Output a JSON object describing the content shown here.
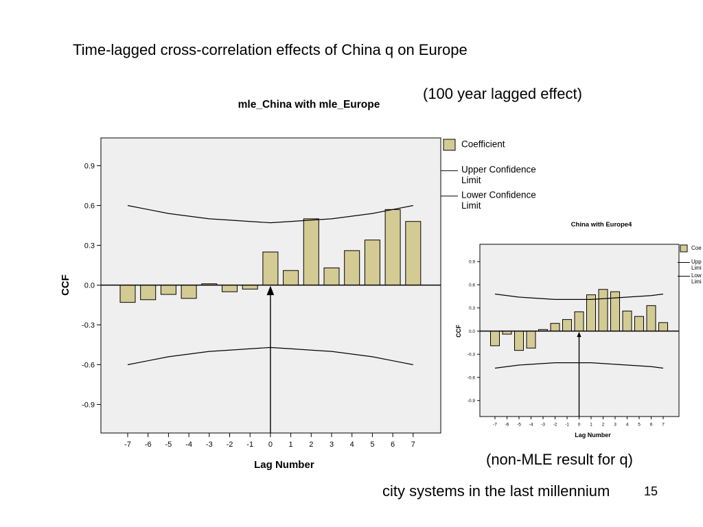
{
  "slide": {
    "title": "Time-lagged cross-correlation effects of China q on Europe",
    "lag_note": "(100 year lagged effect)",
    "nonmle_note": "(non-MLE result for q)",
    "footer": "city systems in the last millennium",
    "page_number": "15"
  },
  "colors": {
    "bar_fill": "#d4cb94",
    "plot_background": "#efefef",
    "line": "#000000"
  },
  "chart_data": [
    {
      "type": "bar",
      "title": "mle_China with mle_Europe",
      "xlabel": "Lag Number",
      "ylabel": "CCF",
      "categories": [
        "-7",
        "-6",
        "-5",
        "-4",
        "-3",
        "-2",
        "-1",
        "0",
        "1",
        "2",
        "3",
        "4",
        "5",
        "6",
        "7"
      ],
      "ylim": [
        -1.1,
        1.1
      ],
      "yticks": [
        "0.9",
        "0.6",
        "0.3",
        "0.0",
        "-0.3",
        "-0.6",
        "-0.9"
      ],
      "series": [
        {
          "name": "Coefficient",
          "values": [
            -0.13,
            -0.11,
            -0.07,
            -0.1,
            0.01,
            -0.05,
            -0.03,
            0.25,
            0.11,
            0.5,
            0.13,
            0.26,
            0.34,
            0.57,
            0.48
          ]
        },
        {
          "name": "Upper Confidence Limit",
          "values": [
            0.6,
            0.57,
            0.54,
            0.52,
            0.5,
            0.49,
            0.48,
            0.47,
            0.48,
            0.49,
            0.5,
            0.52,
            0.54,
            0.57,
            0.6
          ]
        },
        {
          "name": "Lower Confidence Limit",
          "values": [
            -0.6,
            -0.57,
            -0.54,
            -0.52,
            -0.5,
            -0.49,
            -0.48,
            -0.47,
            -0.48,
            -0.49,
            -0.5,
            -0.52,
            -0.54,
            -0.57,
            -0.6
          ]
        }
      ],
      "legend": {
        "position": "right",
        "entries": [
          {
            "text": "Coefficient",
            "lines": [
              "Coefficient"
            ]
          },
          {
            "text": "Upper Confidence Limit",
            "lines": [
              "Upper Confidence",
              "Limit"
            ]
          },
          {
            "text": "Lower Confidence Limit",
            "lines": [
              "Lower Confidence",
              "Limit"
            ]
          }
        ]
      },
      "grid": false,
      "annotation": "arrow at lag 0"
    },
    {
      "type": "bar",
      "title": "China with Europe4",
      "xlabel": "Lag Number",
      "ylabel": "CCF",
      "categories": [
        "-7",
        "-6",
        "-5",
        "-4",
        "-3",
        "-2",
        "-1",
        "0",
        "1",
        "2",
        "3",
        "4",
        "5",
        "6",
        "7"
      ],
      "ylim": [
        -1.1,
        1.1
      ],
      "yticks": [
        "0.9",
        "0.6",
        "0.3",
        "0.0",
        "-0.3",
        "-0.6",
        "-0.9"
      ],
      "series": [
        {
          "name": "Coefficient",
          "values": [
            -0.19,
            -0.04,
            -0.25,
            -0.22,
            0.02,
            0.1,
            0.15,
            0.25,
            0.47,
            0.54,
            0.51,
            0.26,
            0.19,
            0.33,
            0.11
          ]
        },
        {
          "name": "Upper Confidence Limit",
          "values": [
            0.48,
            0.46,
            0.44,
            0.43,
            0.42,
            0.41,
            0.41,
            0.41,
            0.41,
            0.42,
            0.43,
            0.44,
            0.45,
            0.46,
            0.48
          ]
        },
        {
          "name": "Lower Confidence Limit",
          "values": [
            -0.48,
            -0.46,
            -0.44,
            -0.43,
            -0.42,
            -0.41,
            -0.41,
            -0.41,
            -0.41,
            -0.42,
            -0.43,
            -0.44,
            -0.45,
            -0.46,
            -0.48
          ]
        }
      ],
      "legend": {
        "position": "right",
        "entries": [
          {
            "text": "Coefficient",
            "lines": [
              "Coe"
            ]
          },
          {
            "text": "Upper Confidence Limit",
            "lines": [
              "Upp",
              "Limi"
            ]
          },
          {
            "text": "Lower Confidence Limit",
            "lines": [
              "Low",
              "Limi"
            ]
          }
        ]
      },
      "grid": false,
      "annotation": "arrow at lag 0"
    }
  ]
}
